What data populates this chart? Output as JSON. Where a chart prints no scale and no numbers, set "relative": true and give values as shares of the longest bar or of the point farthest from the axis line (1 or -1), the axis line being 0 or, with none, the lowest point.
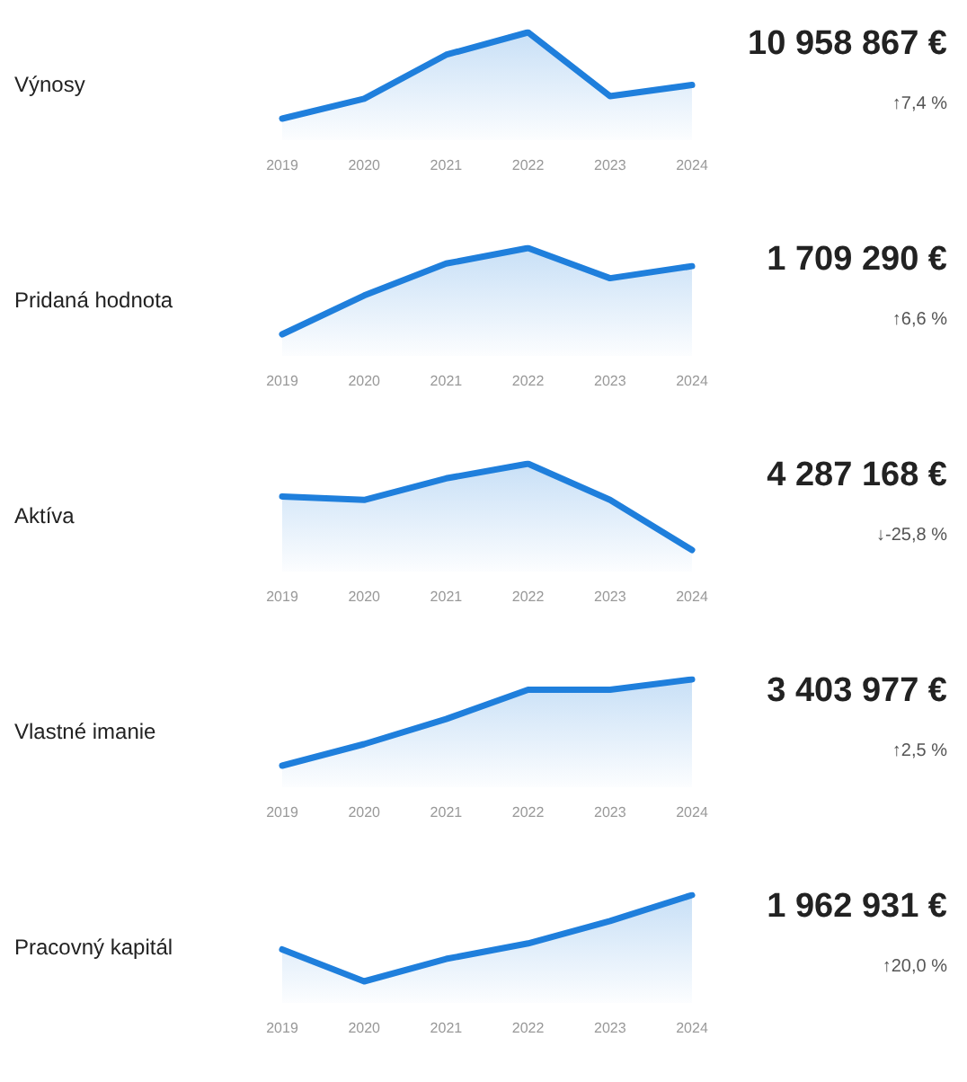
{
  "chart_data": [
    {
      "type": "area",
      "ylabel": "Výnosy",
      "categories": [
        "2019",
        "2020",
        "2021",
        "2022",
        "2023",
        "2024"
      ],
      "values": [
        0,
        0.23,
        0.74,
        1,
        0.26,
        0.39
      ],
      "color": "#1f7fdc",
      "relative": true,
      "annotations": [
        "10 958 867 €",
        "↑7,4 %"
      ]
    },
    {
      "type": "area",
      "ylabel": "Pridaná hodnota",
      "categories": [
        "2019",
        "2020",
        "2021",
        "2022",
        "2023",
        "2024"
      ],
      "values": [
        0,
        0.45,
        0.82,
        1,
        0.65,
        0.79
      ],
      "color": "#1f7fdc",
      "relative": true,
      "annotations": [
        "1 709 290 €",
        "↑6,6 %"
      ]
    },
    {
      "type": "area",
      "ylabel": "Aktíva",
      "categories": [
        "2019",
        "2020",
        "2021",
        "2022",
        "2023",
        "2024"
      ],
      "values": [
        0.62,
        0.58,
        0.83,
        1,
        0.58,
        0
      ],
      "color": "#1f7fdc",
      "relative": true,
      "annotations": [
        "4 287 168 €",
        "↓-25,8 %"
      ]
    },
    {
      "type": "area",
      "ylabel": "Vlastné imanie",
      "categories": [
        "2019",
        "2020",
        "2021",
        "2022",
        "2023",
        "2024"
      ],
      "values": [
        0,
        0.25,
        0.54,
        0.88,
        0.88,
        1
      ],
      "color": "#1f7fdc",
      "relative": true,
      "annotations": [
        "3 403 977 €",
        "↑2,5 %"
      ]
    },
    {
      "type": "area",
      "ylabel": "Pracovný kapitál",
      "categories": [
        "2019",
        "2020",
        "2021",
        "2022",
        "2023",
        "2024"
      ],
      "values": [
        0.37,
        0,
        0.26,
        0.44,
        0.7,
        1
      ],
      "color": "#1f7fdc",
      "relative": true,
      "annotations": [
        "1 962 931 €",
        "↑20,0 %"
      ]
    }
  ]
}
